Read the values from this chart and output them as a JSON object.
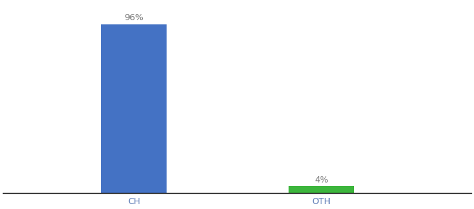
{
  "categories": [
    "CH",
    "OTH"
  ],
  "values": [
    96,
    4
  ],
  "bar_colors": [
    "#4472c4",
    "#3cb53c"
  ],
  "bar_labels": [
    "96%",
    "4%"
  ],
  "ylim": [
    0,
    108
  ],
  "background_color": "#ffffff",
  "label_fontsize": 9,
  "tick_fontsize": 9,
  "tick_color": "#5b7ab5",
  "label_color": "#7a7a7a",
  "bar_width": 0.35
}
